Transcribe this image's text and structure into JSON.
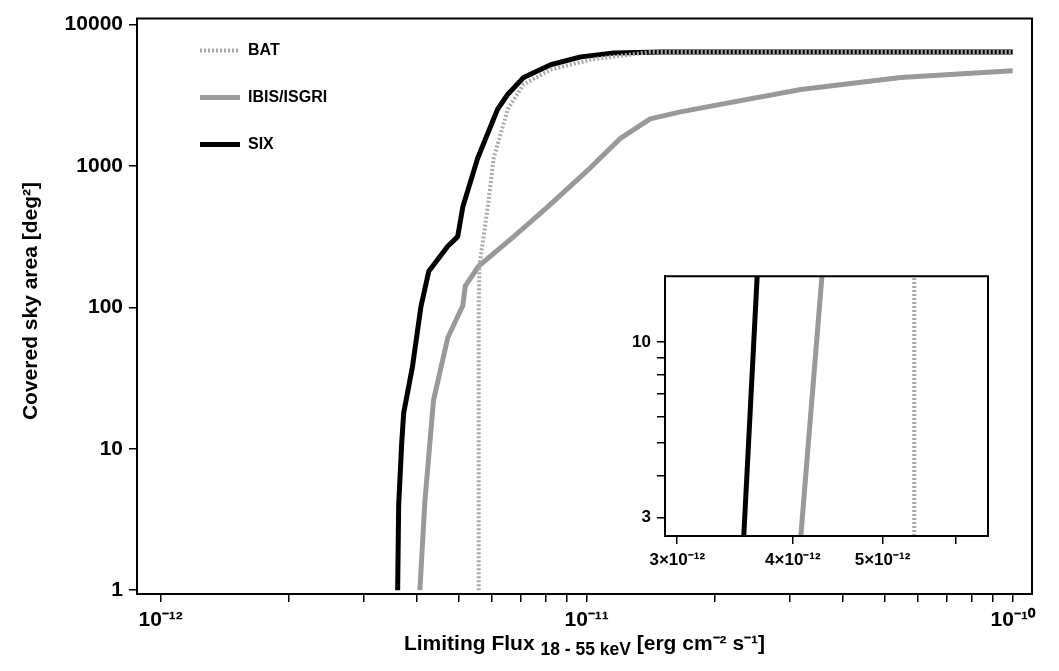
{
  "chart_data": [
    {
      "type": "line",
      "xlabel": "Limiting Flux $_{18 - 55 keV}$ [erg cm⁻² s⁻¹]",
      "ylabel": "Covered sky area [deg²]",
      "log": "xy",
      "grid": false,
      "legend": "top left",
      "xlim": [
        8.8e-13,
        1.11e-10
      ],
      "ylim": [
        0.94,
        11000
      ],
      "xticks": [
        {
          "value": 1e-12,
          "label": "10⁻¹²"
        },
        {
          "value": 2e-12,
          "label": null
        },
        {
          "value": 3e-12,
          "label": null
        },
        {
          "value": 4e-12,
          "label": null
        },
        {
          "value": 5e-12,
          "label": null
        },
        {
          "value": 6e-12,
          "label": null
        },
        {
          "value": 7e-12,
          "label": null
        },
        {
          "value": 8e-12,
          "label": null
        },
        {
          "value": 9e-12,
          "label": null
        },
        {
          "value": 1e-11,
          "label": "10⁻¹¹"
        },
        {
          "value": 2e-11,
          "label": null
        },
        {
          "value": 3e-11,
          "label": null
        },
        {
          "value": 4e-11,
          "label": null
        },
        {
          "value": 5e-11,
          "label": null
        },
        {
          "value": 6e-11,
          "label": null
        },
        {
          "value": 7e-11,
          "label": null
        },
        {
          "value": 8e-11,
          "label": null
        },
        {
          "value": 9e-11,
          "label": null
        },
        {
          "value": 1e-10,
          "label": "10⁻¹⁰"
        }
      ],
      "yticks": [
        1,
        10,
        100,
        1000,
        10000
      ],
      "series": [
        {
          "name": "BAT",
          "color": "#aaaaaa",
          "line_style": "dotted",
          "x": [
            5.58e-12,
            5.58e-12,
            5.6e-12,
            5.86e-12,
            6.05e-12,
            6.53e-12,
            7.11e-12,
            8.23e-12,
            1.02e-11,
            1.2e-11,
            1.41e-11,
            1e-10
          ],
          "values": [
            1,
            100,
            196,
            513,
            1136,
            2520,
            3770,
            4790,
            5630,
            6000,
            6390,
            6390
          ]
        },
        {
          "name": "IBIS/ISGRI",
          "color": "#999999",
          "line_style": "solid",
          "x": [
            4.06e-12,
            4.17e-12,
            4.37e-12,
            4.72e-12,
            5.12e-12,
            5.19e-12,
            5.58e-12,
            6.74e-12,
            8.1e-12,
            1.02e-11,
            1.2e-11,
            1.41e-11,
            1.66e-11,
            3.18e-11,
            5.46e-11,
            1e-10
          ],
          "values": [
            1,
            4.2,
            22,
            61,
            103,
            142,
            196,
            316,
            513,
            969,
            1565,
            2150,
            2410,
            3470,
            4220,
            4700
          ]
        },
        {
          "name": "SIX",
          "color": "#000000",
          "line_style": "solid",
          "x": [
            3.6e-12,
            3.62e-12,
            3.68e-12,
            3.72e-12,
            3.9e-12,
            4.08e-12,
            4.26e-12,
            4.72e-12,
            4.98e-12,
            5.12e-12,
            5.55e-12,
            6.18e-12,
            6.53e-12,
            7.11e-12,
            8.23e-12,
            9.68e-12,
            1.16e-11,
            1.5e-11,
            1e-10
          ],
          "values": [
            1,
            4,
            11,
            18,
            38,
            100,
            180,
            270,
            316,
            513,
            1136,
            2520,
            3210,
            4220,
            5190,
            5900,
            6290,
            6390,
            6390
          ]
        }
      ]
    },
    {
      "type": "line",
      "log": "xy",
      "grid": false,
      "xlim": [
        2.91e-12,
        6.5e-12
      ],
      "ylim": [
        2.64,
        15.7
      ],
      "xticks": [
        {
          "value": 3e-12,
          "label": "3×10⁻¹²"
        },
        {
          "value": 4e-12,
          "label": "4×10⁻¹²"
        },
        {
          "value": 5e-12,
          "label": "5×10⁻¹²"
        },
        {
          "value": 6e-12,
          "label": null
        }
      ],
      "yticks": [
        3,
        {
          "value": 4,
          "label": null
        },
        {
          "value": 5,
          "label": null
        },
        {
          "value": 6,
          "label": null
        },
        {
          "value": 7,
          "label": null
        },
        {
          "value": 8,
          "label": null
        },
        {
          "value": 9,
          "label": null
        },
        10
      ],
      "series": [
        {
          "color": "#aaaaaa",
          "line_style": "dotted",
          "x": [
            5.41e-12,
            5.41e-12
          ],
          "values": [
            2.64,
            15.7
          ]
        },
        {
          "color": "#999999",
          "line_style": "solid",
          "x": [
            4.08e-12,
            4.3e-12
          ],
          "values": [
            2.64,
            15.7
          ]
        },
        {
          "color": "#000000",
          "line_style": "solid",
          "x": [
            3.54e-12,
            3.66e-12
          ],
          "values": [
            2.64,
            15.7
          ]
        }
      ]
    }
  ]
}
